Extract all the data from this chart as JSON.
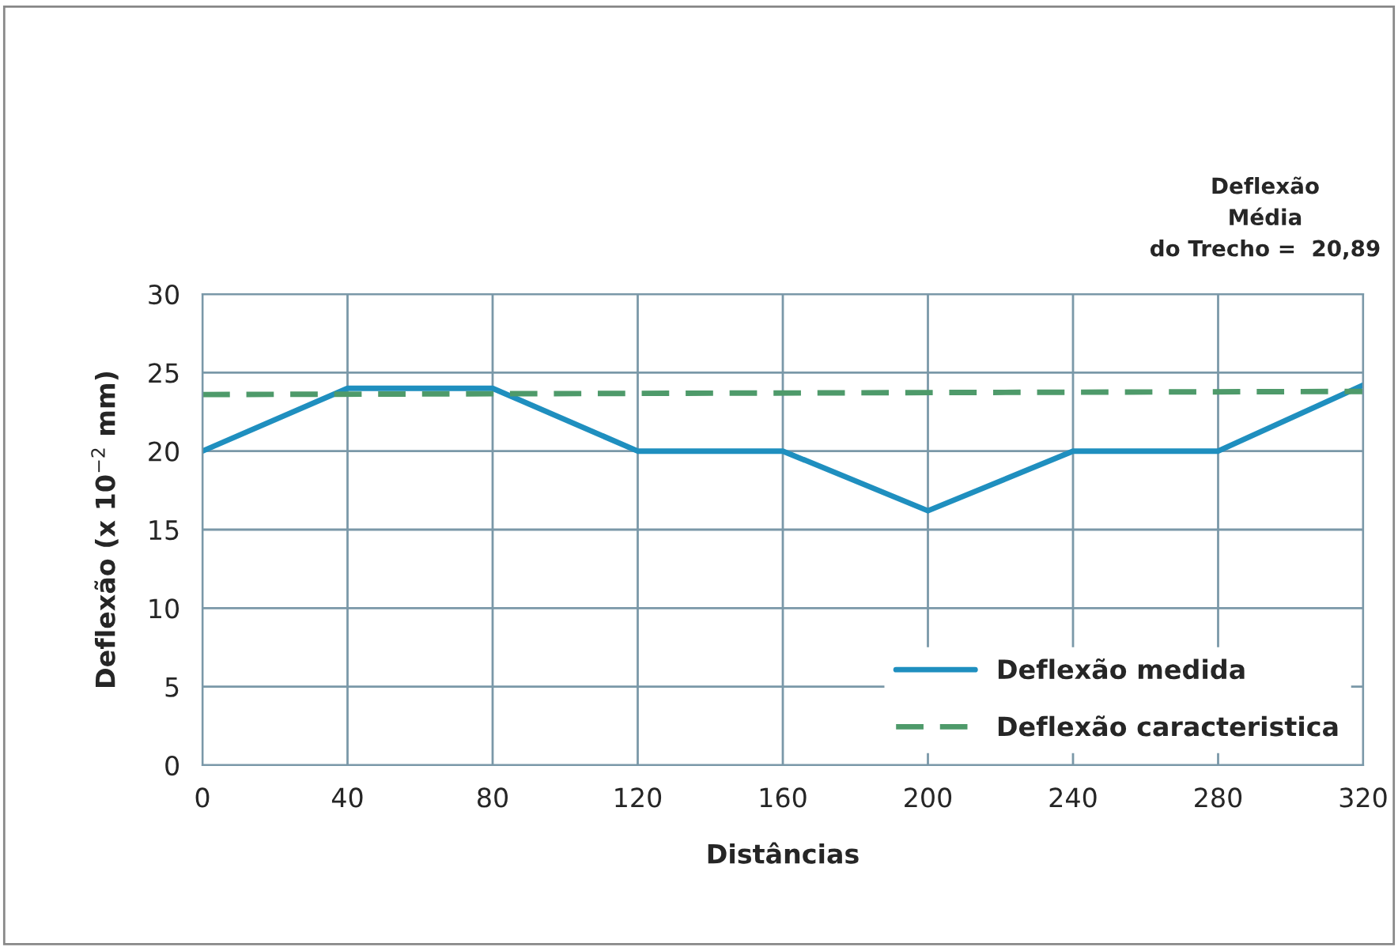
{
  "chart_data": {
    "type": "line",
    "xlabel": "Distâncias",
    "ylabel": "Deflexão (x 10$^{−2}$ mm)",
    "annotations": [
      "Deflexão\nMédia\ndo Trecho =  20,89"
    ],
    "series": [
      {
        "name": "Deflexão medida",
        "color": "#1f8fbf",
        "x": [
          0,
          40,
          80,
          120,
          160,
          200,
          240,
          280,
          320
        ],
        "values": [
          20,
          24,
          24,
          20,
          20,
          16.2,
          20,
          20,
          24.2
        ],
        "line_style": "solid"
      },
      {
        "name": "Deflexão caracteristica",
        "color": "#4e9a6a",
        "x": [
          0,
          320
        ],
        "values": [
          23.6,
          23.8
        ],
        "line_style": "dashed"
      }
    ],
    "xlim": [
      0,
      320
    ],
    "xticks": [
      0,
      40,
      80,
      120,
      160,
      200,
      240,
      280,
      320
    ],
    "ylim": [
      0,
      30
    ],
    "yticks": [
      0,
      5,
      10,
      15,
      20,
      25,
      30
    ],
    "grid": true,
    "legend": "bottom right",
    "marker": "none"
  }
}
